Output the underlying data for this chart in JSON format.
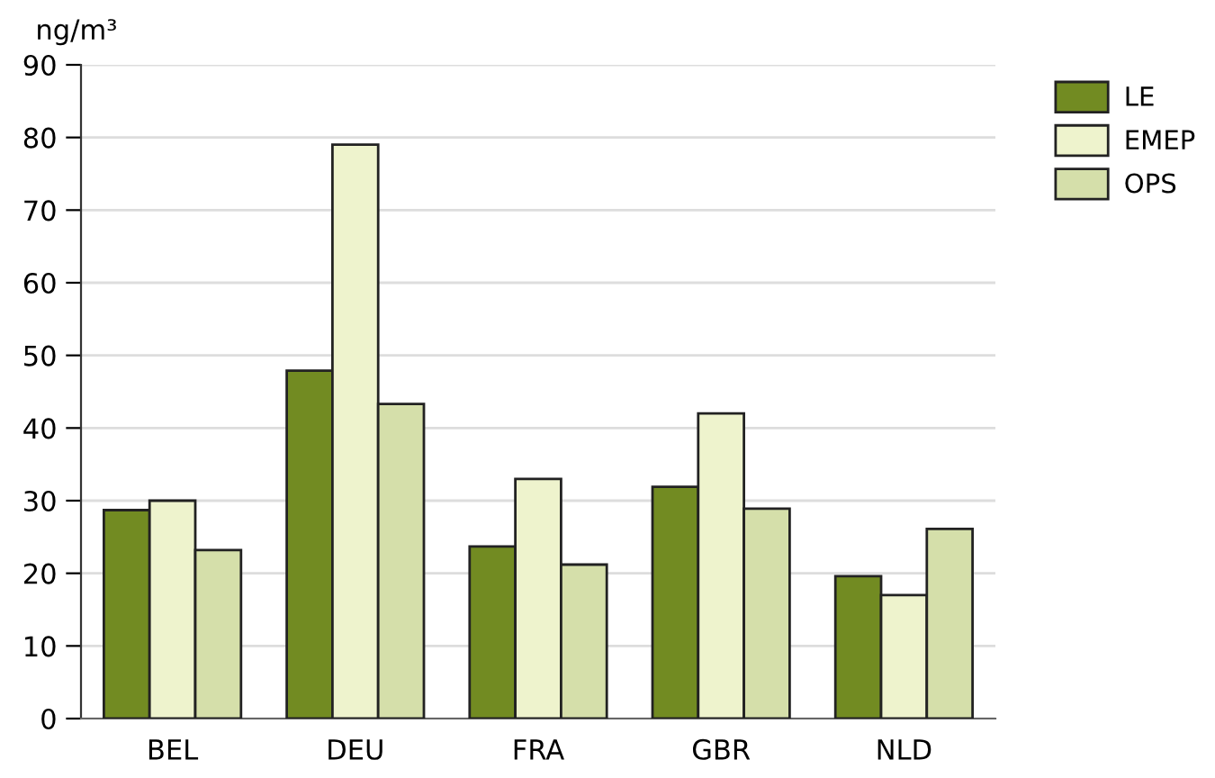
{
  "chart_data": {
    "type": "bar",
    "ylabel": "ng/m³",
    "categories": [
      "BEL",
      "DEU",
      "FRA",
      "GBR",
      "NLD"
    ],
    "series": [
      {
        "name": "LE",
        "color": "#728b22",
        "values": [
          28.7,
          47.9,
          23.7,
          31.9,
          19.6
        ]
      },
      {
        "name": "EMEP",
        "color": "#eef3cd",
        "values": [
          30,
          79,
          33,
          42,
          17
        ]
      },
      {
        "name": "OPS",
        "color": "#d5dfaa",
        "values": [
          23.2,
          43.3,
          21.2,
          28.9,
          26.1
        ]
      }
    ],
    "ylim": [
      0,
      90
    ],
    "yticks": [
      0,
      10,
      20,
      30,
      40,
      50,
      60,
      70,
      80,
      90
    ],
    "grid": "y",
    "legend": "top right"
  }
}
